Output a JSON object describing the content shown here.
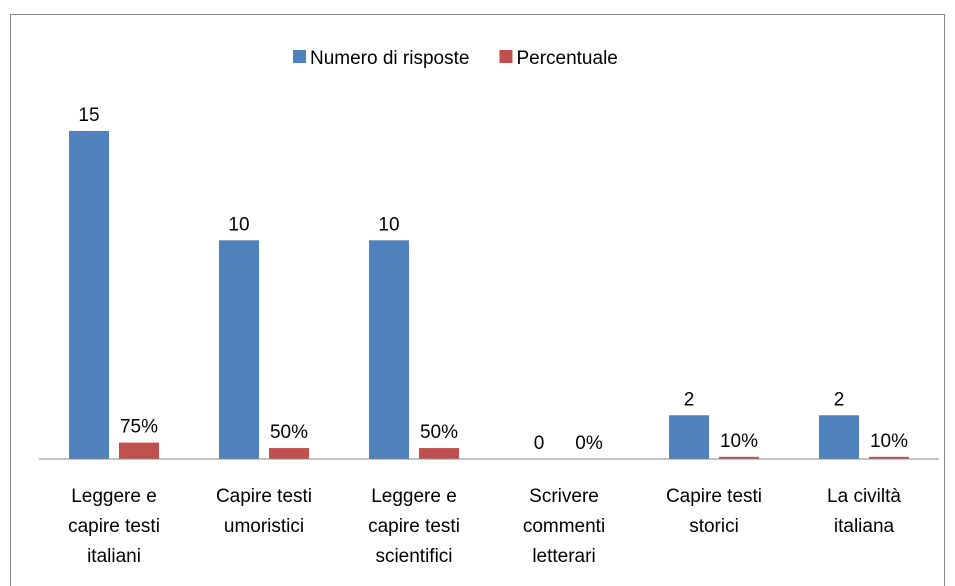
{
  "chart_data": {
    "type": "bar",
    "categories": [
      "Leggere e capire testi italiani",
      "Capire testi umoristici",
      "Leggere e capire testi scientifici",
      "Scrivere commenti letterari",
      "Capire testi storici",
      "La civiltà italiana"
    ],
    "series": [
      {
        "name": "Numero di risposte",
        "color": "#4f81bd",
        "values": [
          15,
          10,
          10,
          0,
          2,
          2
        ]
      },
      {
        "name": "Percentuale",
        "color": "#c0504d",
        "values": [
          0.75,
          0.5,
          0.5,
          0,
          0.1,
          0.1
        ],
        "value_labels": [
          "75%",
          "50%",
          "50%",
          "0%",
          "10%",
          "10%"
        ]
      }
    ],
    "ylim": [
      0,
      16
    ],
    "legend": "top"
  }
}
